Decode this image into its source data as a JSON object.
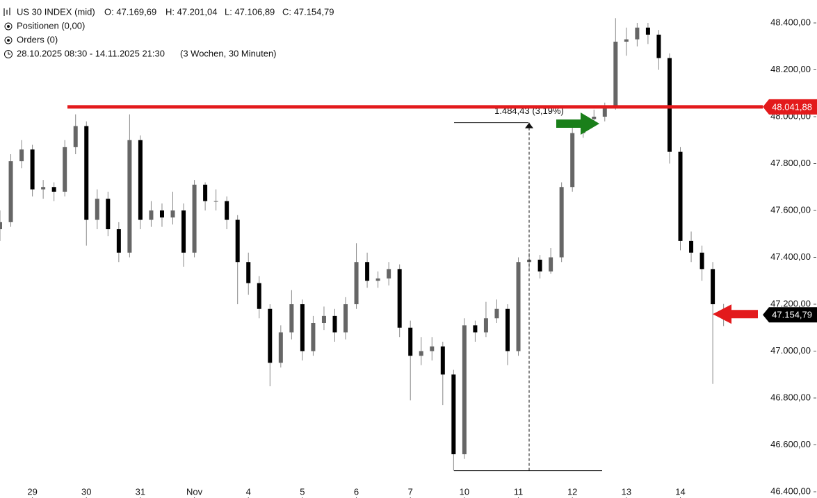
{
  "header": {
    "symbol": "US 30 INDEX (mid)",
    "open": "O: 47.169,69",
    "high": "H: 47.201,04",
    "low": "L: 47.106,89",
    "close": "C: 47.154,79",
    "positions": "Positionen (0,00)",
    "orders": "Orders (0)",
    "range": "28.10.2025 08:30 - 14.11.2025 21:30",
    "span": "(3 Wochen, 30 Minuten)"
  },
  "chart_data": {
    "type": "candlestick",
    "x": [
      -0.6,
      -0.4,
      -0.2,
      0,
      0.2,
      0.4,
      0.6,
      0.8,
      1,
      1.2,
      1.4,
      1.6,
      1.8,
      2,
      2.2,
      2.4,
      2.6,
      2.8,
      3,
      3.2,
      3.4,
      3.6,
      3.8,
      4,
      4.2,
      4.4,
      4.6,
      4.8,
      5,
      5.2,
      5.4,
      5.6,
      5.8,
      6,
      6.2,
      6.4,
      6.6,
      6.8,
      7,
      7.2,
      7.4,
      7.6,
      7.8,
      8,
      8.2,
      8.4,
      8.6,
      8.8,
      9,
      9.2,
      9.4,
      9.6,
      9.8,
      10,
      10.2,
      10.4,
      10.6,
      10.8,
      11,
      11.2,
      11.4,
      11.6,
      11.8,
      12,
      12.2,
      12.4,
      12.6,
      12.8
    ],
    "open": [
      47520,
      47550,
      47810,
      47860,
      47690,
      47700,
      47680,
      47870,
      47960,
      47560,
      47650,
      47520,
      47420,
      47900,
      47560,
      47600,
      47570,
      47600,
      47420,
      47710,
      47640,
      47640,
      47560,
      47380,
      47290,
      47180,
      46950,
      47080,
      47200,
      47000,
      47120,
      47150,
      47080,
      47200,
      47380,
      47300,
      47310,
      47350,
      47100,
      46980,
      47000,
      47020,
      46900,
      46560,
      47110,
      47080,
      47140,
      47180,
      47000,
      47380,
      47390,
      47340,
      47400,
      47700,
      47930,
      47990,
      48000,
      48040,
      48320,
      48330,
      48380,
      48350,
      48250,
      47850,
      47470,
      47420,
      47350,
      47169.69
    ],
    "high": [
      47600,
      47840,
      47900,
      47880,
      47730,
      47720,
      47900,
      48010,
      47980,
      47690,
      47680,
      47550,
      48010,
      47920,
      47640,
      47630,
      47680,
      47630,
      47730,
      47720,
      47690,
      47660,
      47580,
      47420,
      47320,
      47200,
      47110,
      47260,
      47220,
      47150,
      47190,
      47180,
      47230,
      47460,
      47420,
      47340,
      47380,
      47370,
      47130,
      47060,
      47060,
      47040,
      46920,
      47140,
      47130,
      47210,
      47220,
      47200,
      47400,
      47420,
      47410,
      47440,
      47720,
      47960,
      48010,
      48030,
      48060,
      48420,
      48380,
      48400,
      48400,
      48370,
      48270,
      47870,
      47510,
      47450,
      47380,
      47201.04
    ],
    "low": [
      47470,
      47530,
      47780,
      47660,
      47650,
      47640,
      47660,
      47840,
      47450,
      47520,
      47490,
      47380,
      47400,
      47520,
      47530,
      47530,
      47540,
      47360,
      47400,
      47600,
      47600,
      47520,
      47200,
      47240,
      47140,
      46850,
      46930,
      47050,
      46960,
      46980,
      47090,
      47040,
      47050,
      47180,
      47270,
      47270,
      47280,
      47060,
      46790,
      46940,
      46960,
      46770,
      46490,
      46540,
      47040,
      47060,
      47120,
      46940,
      46980,
      47350,
      47310,
      47330,
      47380,
      47680,
      47910,
      47960,
      47980,
      48030,
      48260,
      48300,
      48310,
      48200,
      47800,
      47430,
      47380,
      47300,
      46860,
      47106.89
    ],
    "close": [
      47550,
      47810,
      47860,
      47690,
      47700,
      47680,
      47870,
      47960,
      47560,
      47650,
      47520,
      47420,
      47900,
      47560,
      47600,
      47570,
      47600,
      47420,
      47710,
      47640,
      47640,
      47560,
      47380,
      47290,
      47180,
      46950,
      47080,
      47200,
      47000,
      47120,
      47150,
      47080,
      47200,
      47380,
      47300,
      47310,
      47350,
      47100,
      46980,
      47000,
      47020,
      46900,
      46560,
      47110,
      47080,
      47140,
      47180,
      47000,
      47380,
      47390,
      47340,
      47400,
      47700,
      47930,
      47990,
      48000,
      48040,
      48320,
      48330,
      48380,
      48350,
      48250,
      47850,
      47470,
      47420,
      47350,
      47200,
      47154.79
    ],
    "xlim": [
      -0.6,
      13.5
    ],
    "xticks": [
      {
        "value": 0,
        "label": "29"
      },
      {
        "value": 1,
        "label": "30"
      },
      {
        "value": 2,
        "label": "31"
      },
      {
        "value": 3,
        "label": "Nov"
      },
      {
        "value": 4,
        "label": "4"
      },
      {
        "value": 5,
        "label": "5"
      },
      {
        "value": 6,
        "label": "6"
      },
      {
        "value": 7,
        "label": "7"
      },
      {
        "value": 8,
        "label": "10"
      },
      {
        "value": 9,
        "label": "11"
      },
      {
        "value": 10,
        "label": "12"
      },
      {
        "value": 11,
        "label": "13"
      },
      {
        "value": 12,
        "label": "14"
      }
    ],
    "ylim": [
      46400,
      48400
    ],
    "yticks": [
      {
        "value": 46400,
        "label": "46.400,00"
      },
      {
        "value": 46600,
        "label": "46.600,00"
      },
      {
        "value": 46800,
        "label": "46.800,00"
      },
      {
        "value": 47000,
        "label": "47.000,00"
      },
      {
        "value": 47200,
        "label": "47.200,00"
      },
      {
        "value": 47400,
        "label": "47.400,00"
      },
      {
        "value": 47600,
        "label": "47.600,00"
      },
      {
        "value": 47800,
        "label": "47.800,00"
      },
      {
        "value": 48000,
        "label": "48.000,00"
      },
      {
        "value": 48200,
        "label": "48.200,00"
      },
      {
        "value": 48400,
        "label": "48.400,00"
      }
    ],
    "level": {
      "value": 48041.88,
      "label": "48.041,88",
      "color": "#e31a1c"
    },
    "last": {
      "value": 47154.79,
      "label": "47.154,79"
    },
    "measure": {
      "label": "1.484,43 (3,19%)",
      "low": 46490,
      "high": 47974.43
    }
  }
}
